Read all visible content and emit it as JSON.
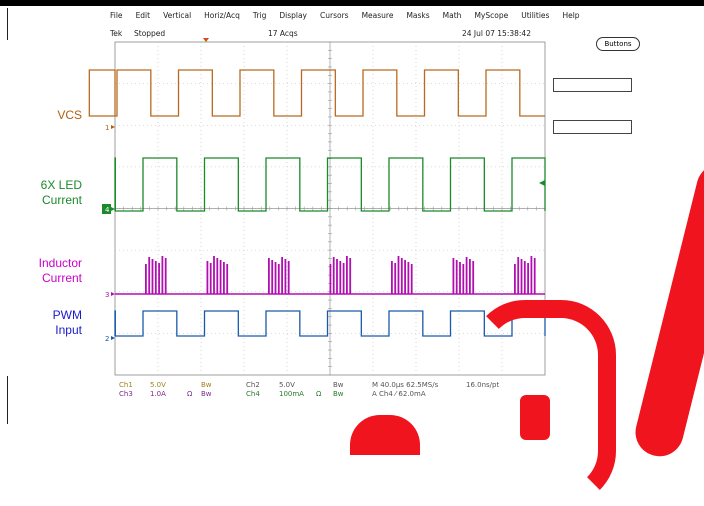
{
  "menu": [
    "File",
    "Edit",
    "Vertical",
    "Horiz/Acq",
    "Trig",
    "Display",
    "Cursors",
    "Measure",
    "Masks",
    "Math",
    "MyScope",
    "Utilities",
    "Help"
  ],
  "status": {
    "brand": "Tek",
    "state": "Stopped",
    "acqs": "17 Acqs",
    "datetime": "24 Jul 07 15:38:42"
  },
  "buttons_label": "Buttons",
  "channels": [
    {
      "label": "VCS",
      "color": "#b06010",
      "marker": "1"
    },
    {
      "label_lines": [
        "6X LED",
        "Current"
      ],
      "color": "#1a8a2a",
      "marker": "4"
    },
    {
      "label_lines": [
        "Inductor",
        "Current"
      ],
      "color": "#cc00cc",
      "marker": "3"
    },
    {
      "label_lines": [
        "PWM",
        "Input"
      ],
      "color": "#1a1acc",
      "marker": "2"
    }
  ],
  "readouts": {
    "ch1": "Ch1",
    "ch1_scale": "5.0V",
    "ch1_bw": "Bw",
    "ch2": "Ch2",
    "ch2_scale": "5.0V",
    "ch2_bw": "Bw",
    "ch3": "Ch3",
    "ch3_scale": "1.0A",
    "ch3_ohm": "Ω",
    "ch3_bw": "Bw",
    "ch4": "Ch4",
    "ch4_scale": "100mA",
    "ch4_ohm": "Ω",
    "ch4_bw": "Bw",
    "timebase": "M 40.0µs 62.5MS/s",
    "resolution": "16.0ns/pt",
    "trigger": "A  Ch4  ⁄  62.0mA"
  }
}
